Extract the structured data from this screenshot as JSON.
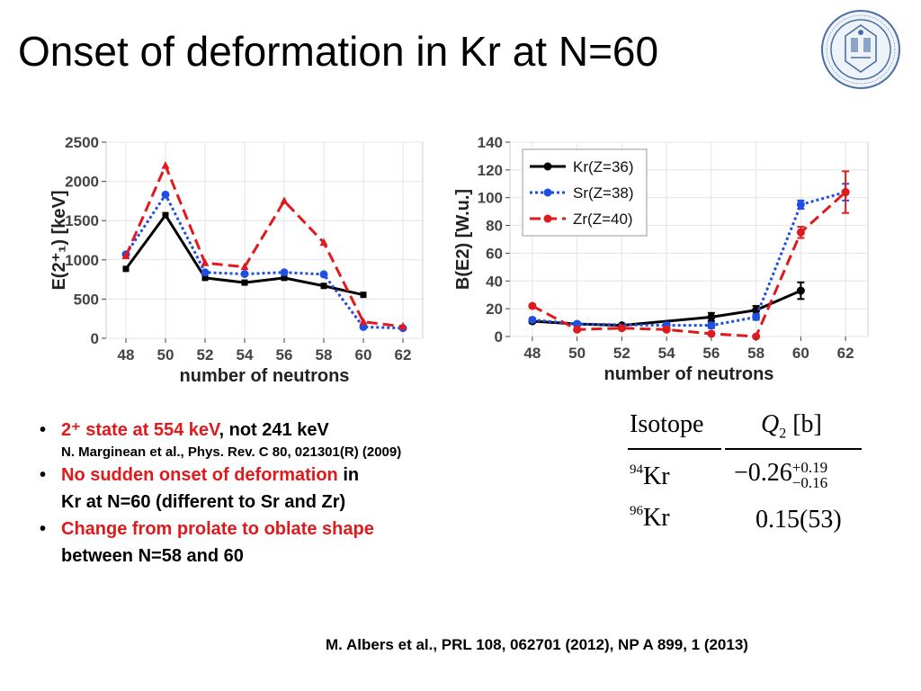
{
  "title": "Onset of deformation in Kr at N=60",
  "chart_data": [
    {
      "type": "line",
      "xlabel": "number of neutrons",
      "ylabel": "E(2⁺₁) [keV]",
      "x_ticks": [
        "48",
        "50",
        "52",
        "54",
        "56",
        "58",
        "60",
        "62"
      ],
      "y_ticks": [
        "0",
        "500",
        "1000",
        "1500",
        "2000",
        "2500"
      ],
      "xlim": [
        47,
        63
      ],
      "ylim": [
        0,
        2500
      ],
      "series": [
        {
          "color": "#000000",
          "style": "solid",
          "marker": "square",
          "points": [
            [
              48,
              885
            ],
            [
              50,
              1570
            ],
            [
              52,
              770
            ],
            [
              54,
              710
            ],
            [
              56,
              770
            ],
            [
              58,
              668
            ],
            [
              60,
              554
            ]
          ]
        },
        {
          "color": "#1f4fe0",
          "style": "dotted",
          "marker": "circle",
          "points": [
            [
              48,
              1070
            ],
            [
              50,
              1830
            ],
            [
              52,
              840
            ],
            [
              54,
              820
            ],
            [
              56,
              840
            ],
            [
              58,
              815
            ],
            [
              60,
              145
            ],
            [
              62,
              130
            ]
          ]
        },
        {
          "color": "#e0191c",
          "style": "dashed",
          "marker": "triangle",
          "points": [
            [
              48,
              1050
            ],
            [
              50,
              2200
            ],
            [
              52,
              960
            ],
            [
              54,
              910
            ],
            [
              56,
              1750
            ],
            [
              58,
              1220
            ],
            [
              60,
              210
            ],
            [
              62,
              150
            ]
          ]
        }
      ]
    },
    {
      "type": "line",
      "xlabel": "number of neutrons",
      "ylabel": "B(E2) [W.u.]",
      "x_ticks": [
        "48",
        "50",
        "52",
        "54",
        "56",
        "58",
        "60",
        "62"
      ],
      "y_ticks": [
        "0",
        "20",
        "40",
        "60",
        "80",
        "100",
        "120",
        "140"
      ],
      "xlim": [
        47,
        63
      ],
      "ylim": [
        0,
        140
      ],
      "series": [
        {
          "name": "Kr(Z=36)",
          "color": "#000000",
          "style": "solid",
          "points": [
            [
              48,
              11,
              1
            ],
            [
              50,
              9,
              1
            ],
            [
              52,
              8,
              1
            ],
            [
              56,
              14,
              3
            ],
            [
              58,
              19,
              3
            ],
            [
              60,
              33,
              6
            ]
          ]
        },
        {
          "name": "Sr(Z=38)",
          "color": "#1f4fe0",
          "style": "dotted",
          "points": [
            [
              48,
              12,
              1
            ],
            [
              50,
              9,
              1
            ],
            [
              54,
              8,
              2
            ],
            [
              56,
              8,
              2
            ],
            [
              58,
              14,
              2
            ],
            [
              60,
              95,
              3
            ],
            [
              62,
              104,
              6
            ]
          ]
        },
        {
          "name": "Zr(Z=40)",
          "color": "#e0191c",
          "style": "dashed",
          "points": [
            [
              48,
              22,
              1
            ],
            [
              50,
              5,
              1
            ],
            [
              52,
              6,
              1
            ],
            [
              54,
              5,
              1
            ],
            [
              56,
              2,
              1
            ],
            [
              58,
              0,
              1
            ],
            [
              60,
              75,
              4
            ],
            [
              62,
              104,
              15
            ]
          ]
        }
      ]
    }
  ],
  "bullets": [
    {
      "red": "2⁺ state at 554 keV",
      "black": ", not 241 keV",
      "sub": "N. Marginean et al., Phys. Rev. C 80, 021301(R) (2009)"
    },
    {
      "red": "No sudden onset of deformation",
      "black": " in",
      "cont": "Kr at N=60 (different to Sr and Zr)"
    },
    {
      "red": "Change from prolate to oblate shape",
      "black": "",
      "cont": "between N=58 and 60"
    }
  ],
  "table": {
    "header_isotope": "Isotope",
    "header_q": "Q",
    "header_q_sub": "2",
    "header_unit": "[b]",
    "rows": [
      {
        "mass": "94",
        "symbol": "Kr",
        "value": "−0.26",
        "plus": "+0.19",
        "minus": "−0.16"
      },
      {
        "mass": "96",
        "symbol": "Kr",
        "value": "0.15(53)"
      }
    ]
  },
  "reference": "M. Albers et al., PRL 108, 062701 (2012), NP A 899, 1 (2013)",
  "colors": {
    "red": "#e0191c",
    "blue": "#1f4fe0",
    "black": "#000000",
    "seal": "#4a6fa5"
  }
}
